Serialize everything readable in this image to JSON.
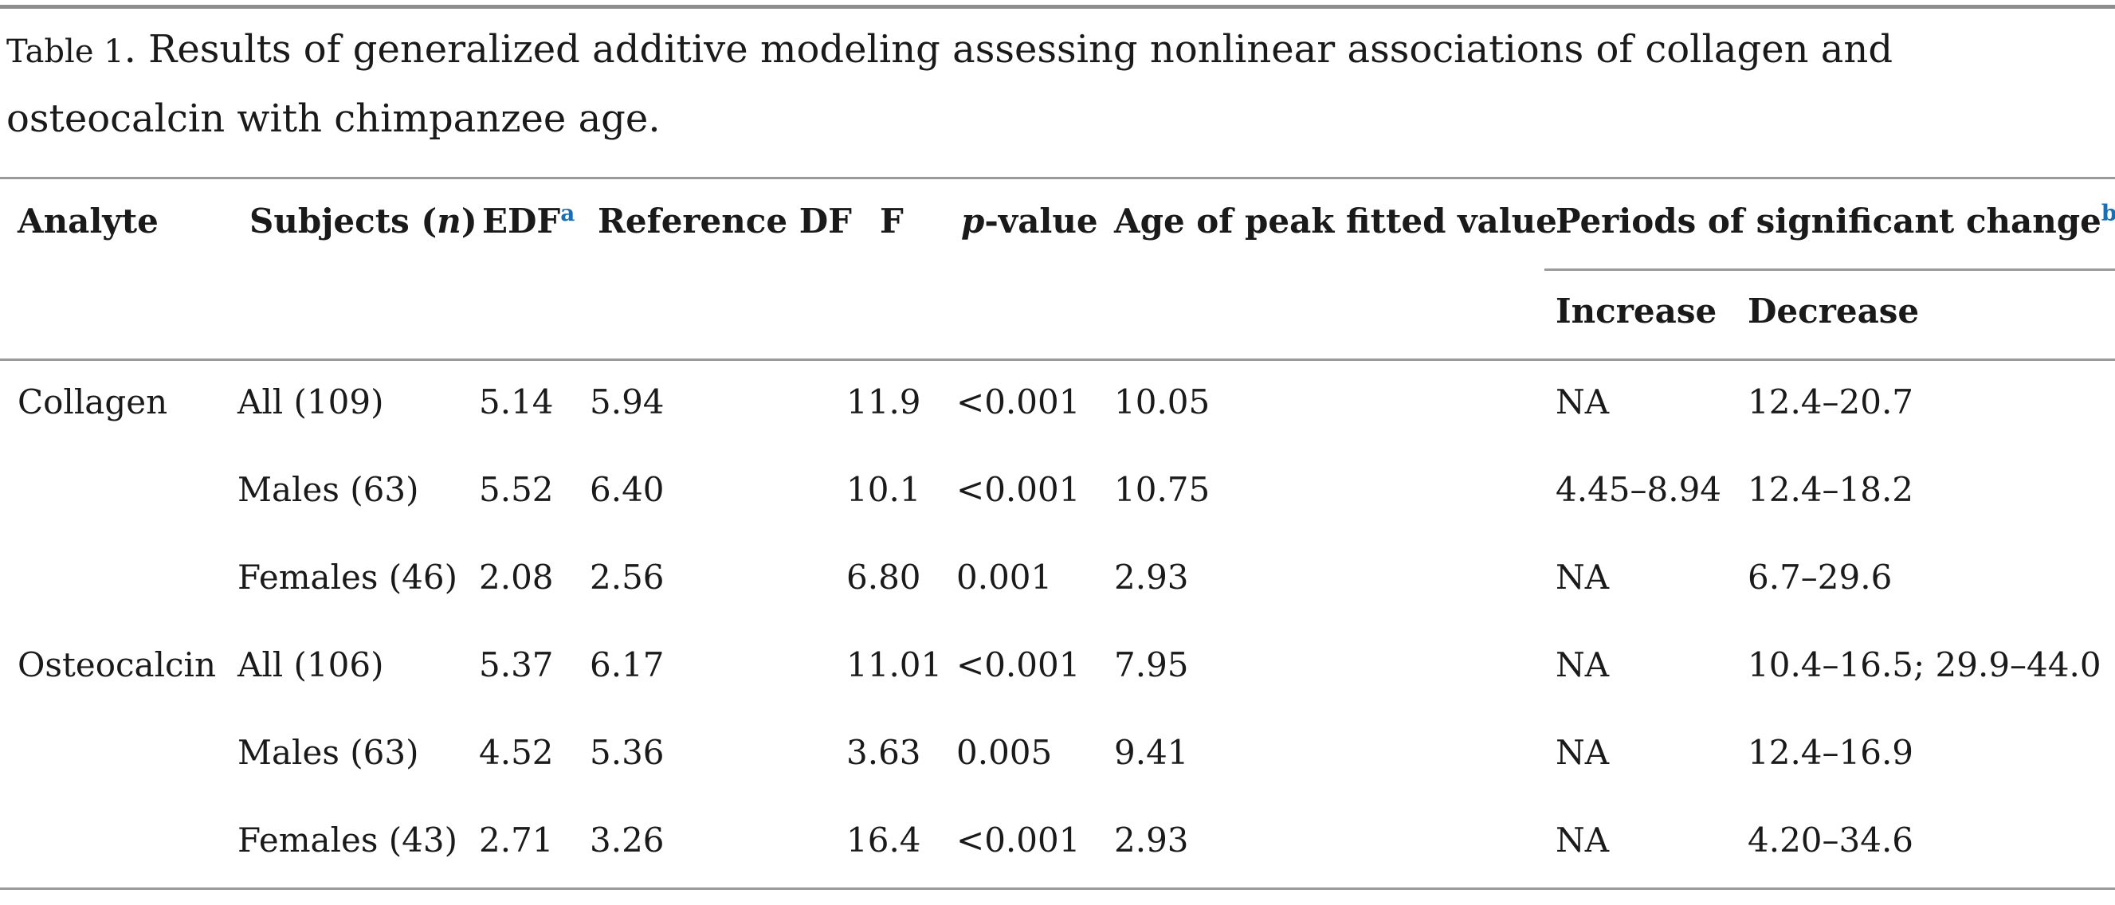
{
  "caption": {
    "label": "Table 1",
    "text": ". Results of generalized additive modeling assessing nonlinear associations of collagen and osteocalcin with chimpanzee age."
  },
  "headers": {
    "analyte": "Analyte",
    "subjects_pre": "Subjects (",
    "subjects_n": "n",
    "subjects_post": ")",
    "edf": "EDF",
    "edf_fn": "a",
    "ref_df": "Reference DF",
    "f": "F",
    "p_italic": "p",
    "p_rest": "-value",
    "peak": "Age of peak fitted value",
    "periods": "Periods of significant change",
    "periods_fn": "b",
    "increase": "Increase",
    "decrease": "Decrease"
  },
  "rows": [
    {
      "analyte": "Collagen",
      "subjects": "All (109)",
      "edf": "5.14",
      "ref_df": "5.94",
      "f": "11.9",
      "p": "<0.001",
      "peak": "10.05",
      "increase": "NA",
      "decrease": "12.4–20.7"
    },
    {
      "analyte": "",
      "subjects": "Males (63)",
      "edf": "5.52",
      "ref_df": "6.40",
      "f": "10.1",
      "p": "<0.001",
      "peak": "10.75",
      "increase": "4.45–8.94",
      "decrease": "12.4–18.2"
    },
    {
      "analyte": "",
      "subjects": "Females (46)",
      "edf": "2.08",
      "ref_df": "2.56",
      "f": "6.80",
      "p": "0.001",
      "peak": "2.93",
      "increase": "NA",
      "decrease": "6.7–29.6"
    },
    {
      "analyte": "Osteocalcin",
      "subjects": "All (106)",
      "edf": "5.37",
      "ref_df": "6.17",
      "f": "11.01",
      "p": "<0.001",
      "peak": "7.95",
      "increase": "NA",
      "decrease": "10.4–16.5; 29.9–44.0"
    },
    {
      "analyte": "",
      "subjects": "Males (63)",
      "edf": "4.52",
      "ref_df": "5.36",
      "f": "3.63",
      "p": "0.005",
      "peak": "9.41",
      "increase": "NA",
      "decrease": "12.4–16.9"
    },
    {
      "analyte": "",
      "subjects": "Females (43)",
      "edf": "2.71",
      "ref_df": "3.26",
      "f": "16.4",
      "p": "<0.001",
      "peak": "2.93",
      "increase": "NA",
      "decrease": "4.20–34.6"
    }
  ]
}
